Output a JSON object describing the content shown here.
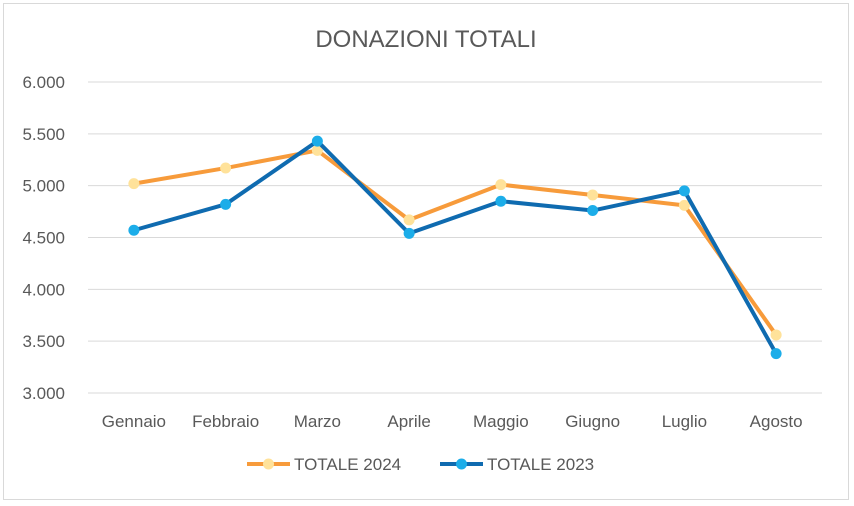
{
  "chart_data": {
    "type": "line",
    "title": "DONAZIONI TOTALI",
    "categories": [
      "Gennaio",
      "Febbraio",
      "Marzo",
      "Aprile",
      "Maggio",
      "Giugno",
      "Luglio",
      "Agosto"
    ],
    "ylim": [
      3000,
      6000
    ],
    "ytick_values": [
      3000,
      3500,
      4000,
      4500,
      5000,
      5500,
      6000
    ],
    "ytick_labels": [
      "3.000",
      "3.500",
      "4.000",
      "4.500",
      "5.000",
      "5.500",
      "6.000"
    ],
    "grid": true,
    "legend_position": "bottom",
    "series": [
      {
        "name": "TOTALE 2024",
        "line_color": "#f79b3b",
        "marker_color": "#ffe29a",
        "values": [
          5020,
          5170,
          5340,
          4670,
          5010,
          4910,
          4810,
          3560
        ]
      },
      {
        "name": "TOTALE 2023",
        "line_color": "#0f6bb0",
        "marker_color": "#1cade9",
        "values": [
          4570,
          4820,
          5430,
          4540,
          4850,
          4760,
          4950,
          3380
        ]
      }
    ]
  }
}
